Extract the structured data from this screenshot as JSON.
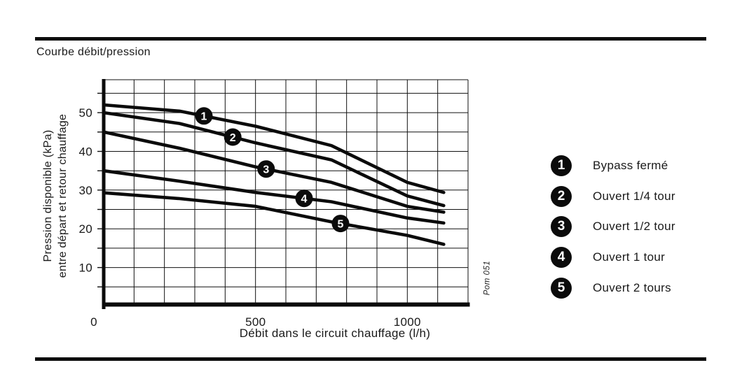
{
  "page": {
    "title": "Courbe débit/pression"
  },
  "chart_data": {
    "type": "line",
    "title": "Courbe débit/pression",
    "xlabel": "Débit dans le circuit chauffage (l/h)",
    "ylabel_line1": "Pression disponible (kPa)",
    "ylabel_line2": "entre départ et retour chauffage",
    "source_label": "Pom 051",
    "xlim": [
      0,
      1200
    ],
    "ylim": [
      0,
      58.5
    ],
    "x_ticks": [
      0,
      500,
      1000
    ],
    "y_ticks": [
      10,
      20,
      30,
      40,
      50
    ],
    "grid": true,
    "grid_x_step": 100,
    "grid_y_step": 5,
    "x_unit": "l/h",
    "y_unit": "kPa",
    "series": [
      {
        "badge": 1,
        "name": "Bypass fermé",
        "badge_x": 330,
        "points": [
          [
            0,
            52
          ],
          [
            250,
            50.4
          ],
          [
            500,
            46.5
          ],
          [
            750,
            41.5
          ],
          [
            1000,
            32
          ],
          [
            1120,
            29.4
          ]
        ]
      },
      {
        "badge": 2,
        "name": "Ouvert 1/4 tour",
        "badge_x": 425,
        "points": [
          [
            0,
            50
          ],
          [
            250,
            47.2
          ],
          [
            500,
            42.2
          ],
          [
            750,
            37.8
          ],
          [
            1000,
            28.5
          ],
          [
            1120,
            26
          ]
        ]
      },
      {
        "badge": 3,
        "name": "Ouvert 1/2 tour",
        "badge_x": 535,
        "points": [
          [
            0,
            45
          ],
          [
            250,
            40.8
          ],
          [
            500,
            36
          ],
          [
            750,
            32
          ],
          [
            1000,
            25.8
          ],
          [
            1120,
            24.3
          ]
        ]
      },
      {
        "badge": 4,
        "name": "Ouvert 1 tour",
        "badge_x": 660,
        "points": [
          [
            0,
            35
          ],
          [
            250,
            32.3
          ],
          [
            500,
            29.4
          ],
          [
            750,
            27
          ],
          [
            1000,
            22.8
          ],
          [
            1120,
            21.5
          ]
        ]
      },
      {
        "badge": 5,
        "name": "Ouvert 2 tours",
        "badge_x": 780,
        "points": [
          [
            0,
            29.3
          ],
          [
            250,
            27.8
          ],
          [
            500,
            25.8
          ],
          [
            750,
            21.8
          ],
          [
            1000,
            18.3
          ],
          [
            1120,
            16
          ]
        ]
      }
    ]
  },
  "legend": {
    "items": [
      {
        "num": "1",
        "label": "Bypass fermé"
      },
      {
        "num": "2",
        "label": "Ouvert 1/4 tour"
      },
      {
        "num": "3",
        "label": "Ouvert 1/2 tour"
      },
      {
        "num": "4",
        "label": "Ouvert 1 tour"
      },
      {
        "num": "5",
        "label": "Ouvert 2 tours"
      }
    ]
  }
}
